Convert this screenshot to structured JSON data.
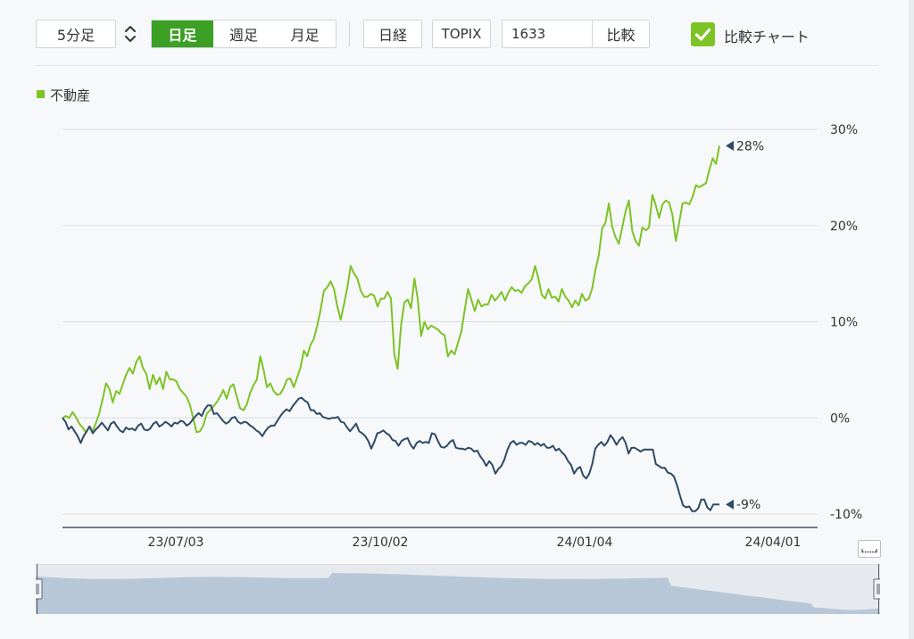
{
  "toolbar": {
    "interval_label": "5分足",
    "period_tabs": [
      {
        "label": "日足",
        "active": true
      },
      {
        "label": "週足",
        "active": false
      },
      {
        "label": "月足",
        "active": false
      }
    ],
    "nikkei_label": "日経",
    "topix_label": "TOPIX",
    "code_value": "1633",
    "compare_label": "比較",
    "compare_chart_label": "比較チャート",
    "compare_chart_checked": true
  },
  "colors": {
    "accent": "#3ca024",
    "series_main": "#7dc325",
    "series_compare": "#2e4a66",
    "grid": "#d9dde3",
    "navigator_fill": "#b8c7d8"
  },
  "legend": {
    "label": "不動産"
  },
  "chart_data": {
    "type": "line",
    "x_tick_labels": [
      "23/07/03",
      "23/10/02",
      "24/01/04",
      "24/04/01"
    ],
    "y_tick_labels": [
      "30%",
      "20%",
      "10%",
      "0%",
      "-10%"
    ],
    "ylim": [
      -10,
      30
    ],
    "y_unit": "%",
    "grid": true,
    "series": [
      {
        "name": "不動産",
        "last_value_label": "28%",
        "values": [
          0,
          0.2,
          0,
          0.6,
          0.1,
          -0.6,
          -1,
          -1.5,
          -0.9,
          -1.4,
          -0.5,
          0.5,
          2,
          3.6,
          3,
          1.6,
          2.8,
          2.5,
          3.5,
          4.5,
          5.2,
          4.6,
          5.8,
          6.4,
          5.2,
          4.6,
          3,
          4.5,
          3.5,
          4.2,
          3,
          4.8,
          4,
          4,
          3.8,
          3,
          2.6,
          2.2,
          1.4,
          0,
          -1.5,
          -1.4,
          -0.8,
          0.4,
          0.8,
          1.2,
          1.6,
          2.2,
          2.9,
          2,
          3.2,
          3.5,
          2.2,
          1,
          0.8,
          1.4,
          2.6,
          3.4,
          4,
          6.4,
          5,
          3.2,
          3.6,
          2.8,
          2.4,
          2.5,
          3.1,
          4,
          4.1,
          3.2,
          4.2,
          5.2,
          7,
          6.4,
          7.6,
          8.2,
          9.6,
          11.2,
          13.2,
          13.6,
          14.2,
          13.4,
          11.6,
          10.2,
          11.8,
          13.6,
          15.8,
          15,
          14.5,
          13.2,
          12.6,
          12.6,
          12.9,
          12.7,
          11.6,
          12.4,
          12.4,
          13.1,
          12.4,
          6.6,
          5.1,
          9.6,
          12,
          12.3,
          11.4,
          14.5,
          12.4,
          8.5,
          10,
          9.2,
          9.6,
          9.4,
          9.2,
          8.8,
          8.6,
          6.4,
          7,
          6.6,
          7.8,
          9,
          11.2,
          13.4,
          12.3,
          11.1,
          12.3,
          11.6,
          11.8,
          11.8,
          12.8,
          12.2,
          12.6,
          13.1,
          12.2,
          13,
          13.6,
          13.2,
          13.3,
          13,
          13.7,
          14,
          14.4,
          15.8,
          14.5,
          12.8,
          12.4,
          13.4,
          12.5,
          12.6,
          12.1,
          13.4,
          12.6,
          12.2,
          11.5,
          12.2,
          11.7,
          12.9,
          12.2,
          12.4,
          13.4,
          15.4,
          16.9,
          19.7,
          20.3,
          22.3,
          19.9,
          18.8,
          18.1,
          19.8,
          21.5,
          22.6,
          19.4,
          18.4,
          17.9,
          19.8,
          19.5,
          19.8,
          23.2,
          22.1,
          20.8,
          22.2,
          22.6,
          22.4,
          21.1,
          18.4,
          20.3,
          22.3,
          22.4,
          22.2,
          23,
          24.2,
          24,
          24.2,
          24.4,
          25.8,
          27,
          26.4,
          28.3
        ]
      },
      {
        "name": "",
        "last_value_label": "-9%",
        "values": [
          0,
          -0.4,
          -1.2,
          -0.9,
          -1.4,
          -1.9,
          -2.6,
          -1.9,
          -1.4,
          -0.9,
          -1.6,
          -1.2,
          -0.9,
          -0.5,
          -0.9,
          -1.3,
          -0.6,
          -0.4,
          -0.9,
          -1.3,
          -1.5,
          -1,
          -1.2,
          -1.1,
          -1.3,
          -0.8,
          -0.6,
          -1.2,
          -1.3,
          -1.1,
          -0.6,
          -0.4,
          -0.9,
          -0.7,
          -0.4,
          -0.6,
          -0.9,
          -0.5,
          -0.6,
          -0.3,
          -0.4,
          -0.8,
          -0.6,
          -0.2,
          0.2,
          0.5,
          0.2,
          0.9,
          1.3,
          1.3,
          0.4,
          0.5,
          0.1,
          -0.3,
          -0.6,
          -0.4,
          0,
          0.1,
          -0.4,
          -0.6,
          -0.4,
          -0.5,
          -0.8,
          -1,
          -1.3,
          -1.5,
          -1.9,
          -1.4,
          -1,
          -0.8,
          -0.8,
          -0.3,
          0.2,
          0.6,
          0.9,
          0.7,
          1.2,
          1.6,
          2,
          2.1,
          1.8,
          1.6,
          0.8,
          0.8,
          0.4,
          0.5,
          0.1,
          0,
          -0.1,
          0,
          0,
          0.1,
          -0.4,
          -0.5,
          -1,
          -1.4,
          -1,
          -0.6,
          -1.4,
          -1.6,
          -1.9,
          -2.4,
          -3.2,
          -2.5,
          -1.6,
          -1.5,
          -1.3,
          -1.6,
          -1.8,
          -2.3,
          -2.4,
          -2.9,
          -2.4,
          -2.2,
          -2.1,
          -2.8,
          -3.2,
          -2.6,
          -2.4,
          -2.6,
          -2.5,
          -2.6,
          -1.6,
          -1.7,
          -2.4,
          -3,
          -3.1,
          -2.9,
          -2.5,
          -2.3,
          -3.1,
          -3.2,
          -3.2,
          -3.3,
          -3.1,
          -3.2,
          -3.5,
          -3.4,
          -4,
          -4.4,
          -5,
          -4.5,
          -4.9,
          -5.8,
          -5.3,
          -5,
          -4.3,
          -3.3,
          -2.6,
          -2.4,
          -2.8,
          -2.6,
          -2.6,
          -2.8,
          -2.4,
          -2.5,
          -2.8,
          -2.6,
          -2.9,
          -2.7,
          -3.1,
          -3.1,
          -2.9,
          -3.4,
          -3.2,
          -3.6,
          -3.9,
          -4.5,
          -4.9,
          -5.8,
          -5.3,
          -5.1,
          -6,
          -6.3,
          -5.8,
          -4.8,
          -3.2,
          -2.8,
          -2.5,
          -2.9,
          -2.5,
          -1.8,
          -2.2,
          -2.8,
          -2.3,
          -2,
          -2.6,
          -3.7,
          -3.1,
          -3.1,
          -3.3,
          -3.5,
          -3.3,
          -3.3,
          -3.3,
          -3.3,
          -4.8,
          -5,
          -5.2,
          -5.2,
          -5.7,
          -5.8,
          -6.1,
          -7,
          -8.1,
          -9.1,
          -9.3,
          -9.2,
          -9.7,
          -9.7,
          -9.4,
          -8.5,
          -8.5,
          -9.3,
          -9.6,
          -9,
          -9,
          -9
        ]
      }
    ]
  },
  "navigator": {
    "has_range_handles": true
  }
}
